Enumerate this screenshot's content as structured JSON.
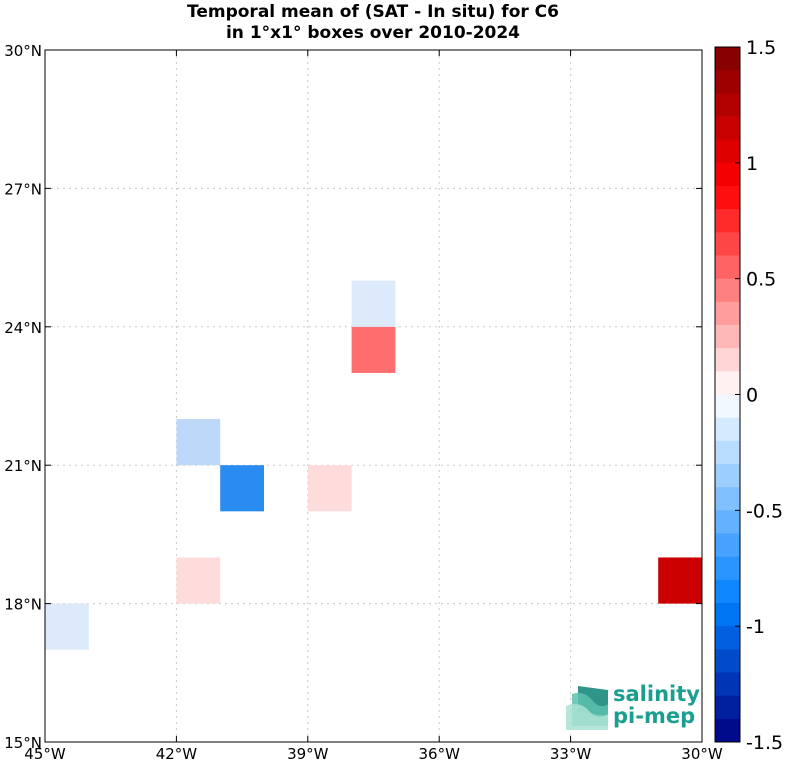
{
  "chart_data": {
    "type": "heatmap",
    "title": [
      "Temporal mean of (SAT - In situ) for C6",
      "in 1°x1° boxes over 2010-2024"
    ],
    "xlim": [
      -45,
      -30
    ],
    "ylim": [
      15,
      30
    ],
    "x_ticks": [
      {
        "value": -45,
        "label": "45°W"
      },
      {
        "value": -42,
        "label": "42°W"
      },
      {
        "value": -39,
        "label": "39°W"
      },
      {
        "value": -36,
        "label": "36°W"
      },
      {
        "value": -33,
        "label": "33°W"
      },
      {
        "value": -30,
        "label": "30°W"
      }
    ],
    "y_ticks": [
      {
        "value": 15,
        "label": "15°N"
      },
      {
        "value": 18,
        "label": "18°N"
      },
      {
        "value": 21,
        "label": "21°N"
      },
      {
        "value": 24,
        "label": "24°N"
      },
      {
        "value": 27,
        "label": "27°N"
      },
      {
        "value": 30,
        "label": "30°N"
      }
    ],
    "grid": true,
    "colorbar": {
      "range": [
        -1.5,
        1.5
      ],
      "levels": 30,
      "ticks": [
        {
          "value": 1.5,
          "label": "1.5"
        },
        {
          "value": 1,
          "label": "1"
        },
        {
          "value": 0.5,
          "label": "0.5"
        },
        {
          "value": 0,
          "label": "0"
        },
        {
          "value": -0.5,
          "label": "-0.5"
        },
        {
          "value": -1,
          "label": "-1"
        },
        {
          "value": -1.5,
          "label": "-1.5"
        }
      ]
    },
    "cells": [
      {
        "lon": -45,
        "lat": 17,
        "value": -0.15,
        "color": "#dceafb"
      },
      {
        "lon": -42,
        "lat": 18,
        "value": 0.15,
        "color": "#ffdcdc"
      },
      {
        "lon": -42,
        "lat": 21,
        "value": -0.3,
        "color": "#bdd8f8"
      },
      {
        "lon": -41,
        "lat": 20,
        "value": -0.75,
        "color": "#2a8cf0"
      },
      {
        "lon": -39,
        "lat": 20,
        "value": 0.15,
        "color": "#ffdcdc"
      },
      {
        "lon": -38,
        "lat": 23,
        "value": 0.55,
        "color": "#ff6e6e"
      },
      {
        "lon": -38,
        "lat": 24,
        "value": -0.15,
        "color": "#dceafb"
      },
      {
        "lon": -31,
        "lat": 18,
        "value": 1.2,
        "color": "#cc0000"
      }
    ]
  },
  "logo": {
    "line1": "salinity",
    "line2": "pi-mep",
    "icon": "salinity-waves-logo-icon",
    "color": "#1a9e8f"
  }
}
